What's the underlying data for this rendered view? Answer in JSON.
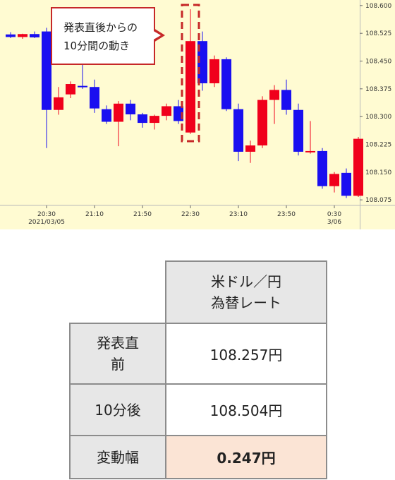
{
  "chart_data": {
    "type": "candlestick",
    "y_ticks": [
      "108.600",
      "108.525",
      "108.450",
      "108.375",
      "108.300",
      "108.225",
      "108.150",
      "108.075"
    ],
    "ylim": [
      108.06,
      108.615
    ],
    "x_ticks": [
      {
        "label": "20:30",
        "sub": "2021/03/05",
        "index": 3
      },
      {
        "label": "21:10",
        "sub": "",
        "index": 7
      },
      {
        "label": "21:50",
        "sub": "",
        "index": 11
      },
      {
        "label": "22:30",
        "sub": "",
        "index": 15
      },
      {
        "label": "23:10",
        "sub": "",
        "index": 19
      },
      {
        "label": "23:50",
        "sub": "",
        "index": 23
      },
      {
        "label": "0:30",
        "sub": "3/06",
        "index": 27
      }
    ],
    "colors": {
      "up": "#f0001c",
      "down": "#1a0ff0",
      "background": "#fffbd2",
      "grid": "#b9b9b9",
      "highlight": "#c62828"
    },
    "candles": [
      {
        "open": 108.522,
        "high": 108.528,
        "low": 108.512,
        "close": 108.515
      },
      {
        "open": 108.515,
        "high": 108.524,
        "low": 108.51,
        "close": 108.523
      },
      {
        "open": 108.523,
        "high": 108.53,
        "low": 108.512,
        "close": 108.514
      },
      {
        "open": 108.53,
        "high": 108.54,
        "low": 108.215,
        "close": 108.318
      },
      {
        "open": 108.318,
        "high": 108.38,
        "low": 108.305,
        "close": 108.352
      },
      {
        "open": 108.36,
        "high": 108.395,
        "low": 108.35,
        "close": 108.388
      },
      {
        "open": 108.383,
        "high": 108.44,
        "low": 108.375,
        "close": 108.38
      },
      {
        "open": 108.38,
        "high": 108.4,
        "low": 108.31,
        "close": 108.322
      },
      {
        "open": 108.32,
        "high": 108.33,
        "low": 108.28,
        "close": 108.286
      },
      {
        "open": 108.286,
        "high": 108.342,
        "low": 108.22,
        "close": 108.335
      },
      {
        "open": 108.335,
        "high": 108.345,
        "low": 108.29,
        "close": 108.306
      },
      {
        "open": 108.306,
        "high": 108.31,
        "low": 108.27,
        "close": 108.283
      },
      {
        "open": 108.283,
        "high": 108.305,
        "low": 108.265,
        "close": 108.302
      },
      {
        "open": 108.302,
        "high": 108.335,
        "low": 108.29,
        "close": 108.328
      },
      {
        "open": 108.328,
        "high": 108.345,
        "low": 108.28,
        "close": 108.288
      },
      {
        "open": 108.257,
        "high": 108.59,
        "low": 108.253,
        "close": 108.504
      },
      {
        "open": 108.504,
        "high": 108.53,
        "low": 108.37,
        "close": 108.39
      },
      {
        "open": 108.39,
        "high": 108.465,
        "low": 108.38,
        "close": 108.455
      },
      {
        "open": 108.455,
        "high": 108.46,
        "low": 108.315,
        "close": 108.32
      },
      {
        "open": 108.32,
        "high": 108.335,
        "low": 108.18,
        "close": 108.205
      },
      {
        "open": 108.205,
        "high": 108.235,
        "low": 108.175,
        "close": 108.222
      },
      {
        "open": 108.222,
        "high": 108.355,
        "low": 108.215,
        "close": 108.345
      },
      {
        "open": 108.345,
        "high": 108.385,
        "low": 108.28,
        "close": 108.372
      },
      {
        "open": 108.372,
        "high": 108.4,
        "low": 108.305,
        "close": 108.318
      },
      {
        "open": 108.318,
        "high": 108.335,
        "low": 108.195,
        "close": 108.205
      },
      {
        "open": 108.205,
        "high": 108.288,
        "low": 108.2,
        "close": 108.207
      },
      {
        "open": 108.207,
        "high": 108.215,
        "low": 108.105,
        "close": 108.112
      },
      {
        "open": 108.112,
        "high": 108.15,
        "low": 108.095,
        "close": 108.145
      },
      {
        "open": 108.148,
        "high": 108.16,
        "low": 108.08,
        "close": 108.086
      },
      {
        "open": 108.086,
        "high": 108.245,
        "low": 108.083,
        "close": 108.24
      }
    ]
  },
  "callout": {
    "text": "発表直後からの\n10分間の動き"
  },
  "table": {
    "header": "米ドル／円\n為替レート",
    "rows": [
      {
        "label": "発表直\n前",
        "value": "108.257円"
      },
      {
        "label": "10分後",
        "value": "108.504円"
      },
      {
        "label": "変動幅",
        "value": "0.247円"
      }
    ]
  }
}
